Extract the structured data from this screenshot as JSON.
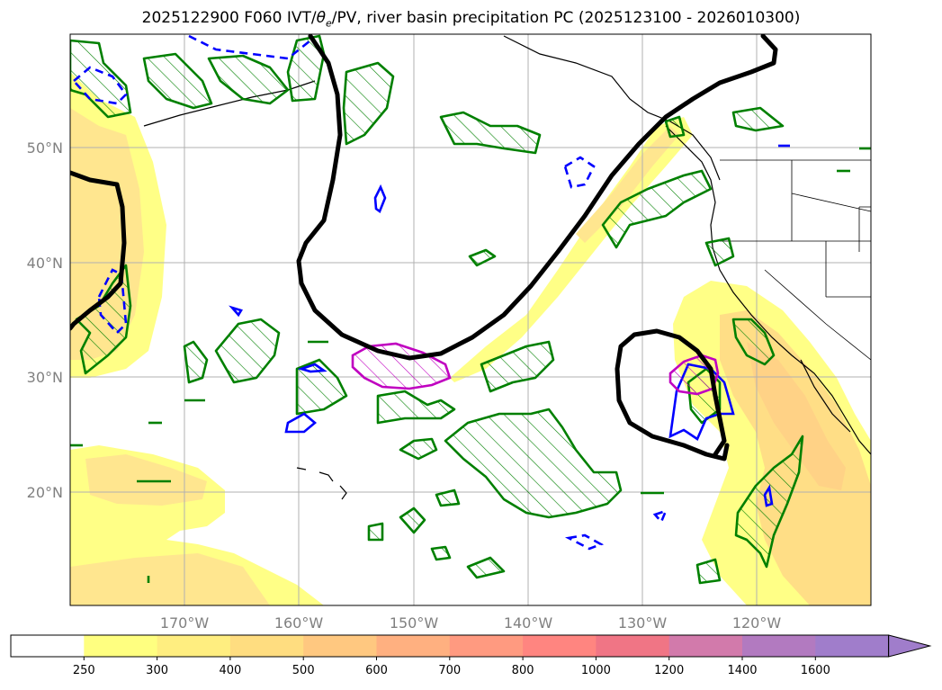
{
  "title": {
    "prefix": "2025122900 F060 IVT/",
    "theta": "θ",
    "theta_sub": "e",
    "suffix": "/PV, river basin precipitation PC (2025123100 - 2026010300)"
  },
  "map": {
    "lon_ticks": [
      "170°W",
      "160°W",
      "150°W",
      "140°W",
      "130°W",
      "120°W"
    ],
    "lat_ticks": [
      "50°N",
      "40°N",
      "30°N",
      "20°N"
    ],
    "grid": true,
    "coastline_color": "#000000"
  },
  "colorbar": {
    "ticks": [
      "250",
      "300",
      "400",
      "500",
      "600",
      "700",
      "800",
      "1000",
      "1200",
      "1400",
      "1600"
    ],
    "colors": [
      "#ffffff",
      "#ffff80",
      "#ffee80",
      "#ffdd80",
      "#ffc880",
      "#ffb080",
      "#ff9a80",
      "#ff8580",
      "#f07585",
      "#d27aab",
      "#b27ac0",
      "#a07dcb"
    ],
    "extend": "max"
  },
  "contours": {
    "pv_color": "#000000",
    "positive_color": "#008000",
    "negative_color": "#0000ff",
    "theta_color": "#c000c0"
  }
}
